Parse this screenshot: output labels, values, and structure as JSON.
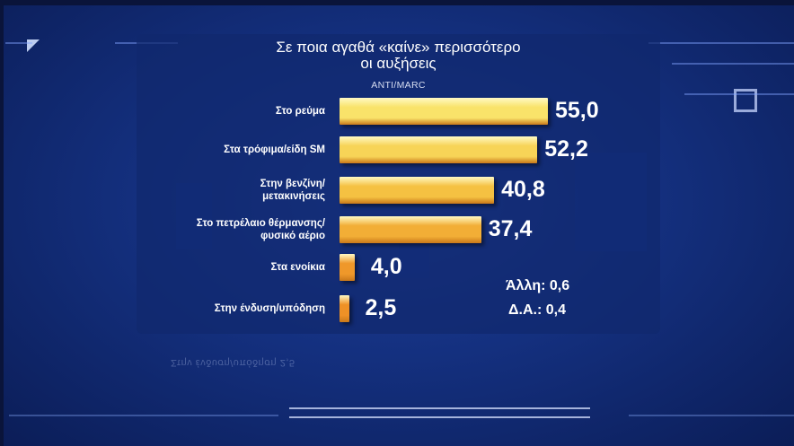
{
  "chart_data": {
    "type": "bar",
    "orientation": "horizontal",
    "title": "Σε ποια αγαθά «καίνε» περισσότερο οι αυξήσεις",
    "title_lines": [
      "Σε ποια αγαθά «καίνε» περισσότερο",
      "οι αυξήσεις"
    ],
    "source": "ANTI/MARC",
    "categories": [
      "Στο ρεύμα",
      "Στα τρόφιμα/είδη SM",
      "Στην βενζίνη/ μετακινήσεις",
      "Στο πετρέλαιο θέρμανσης/ φυσικό αέριο",
      "Στα ενοίκια",
      "Στην ένδυση/υπόδηση"
    ],
    "category_lines": [
      [
        "Στο ρεύμα"
      ],
      [
        "Στα τρόφιμα/είδη SM"
      ],
      [
        "Στην βενζίνη/",
        "μετακινήσεις"
      ],
      [
        "Στο πετρέλαιο θέρμανσης/",
        "φυσικό αέριο"
      ],
      [
        "Στα ενοίκια"
      ],
      [
        "Στην ένδυση/υπόδηση"
      ]
    ],
    "values": [
      55.0,
      52.2,
      40.8,
      37.4,
      4.0,
      2.5
    ],
    "value_labels": [
      "55,0",
      "52,2",
      "40,8",
      "37,4",
      "4,0",
      "2,5"
    ],
    "xlim": [
      0,
      55
    ],
    "grid": false,
    "legend": "none",
    "annotations": [
      "Άλλη: 0,6",
      "Δ.Α.: 0,4"
    ],
    "colors": [
      "#f9e36a",
      "#f7d457",
      "#f5c142",
      "#f2ae36",
      "#ef982a",
      "#ee9126"
    ]
  },
  "colors": {
    "background": "#14307f",
    "panel": "#10286e",
    "text": "#ffffff"
  },
  "footer_reflection": "Στην ένδυση/υπόδηση   2,5"
}
